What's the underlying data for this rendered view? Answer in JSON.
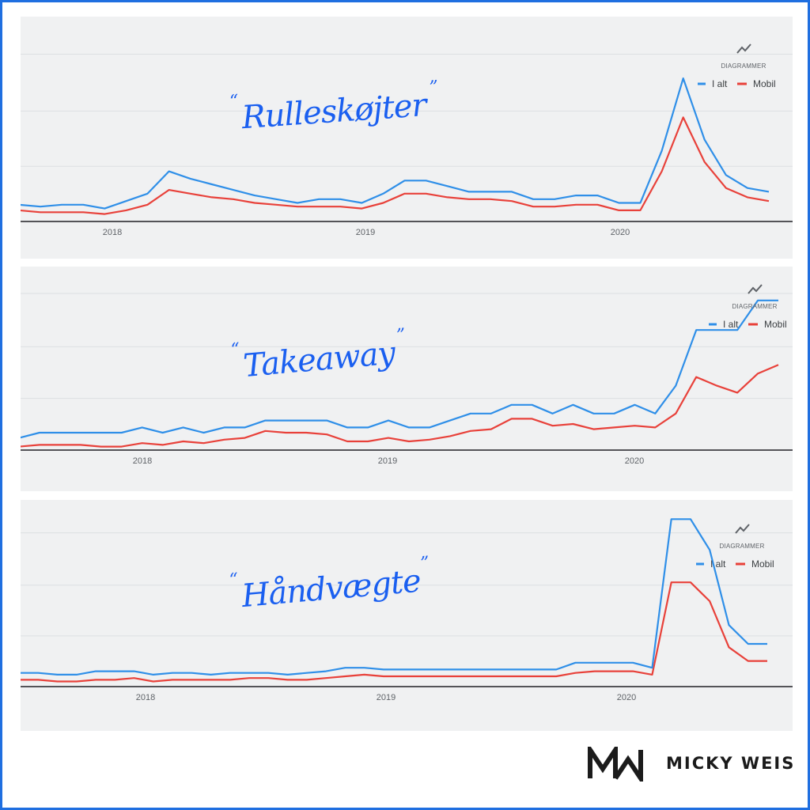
{
  "brand": {
    "name": "MICKY WEIS"
  },
  "colors": {
    "total": "#2f8fe8",
    "mobile": "#e8413a",
    "term": "#1a5ff0",
    "frame": "#1f6fe0"
  },
  "legend": {
    "icon": "trend-line-icon",
    "label": "DIAGRAMMER",
    "total": "I alt",
    "mobile": "Mobil"
  },
  "chart_data": [
    {
      "type": "line",
      "title": "Rulleskøjter",
      "x_ticks": [
        "2018",
        "2019",
        "2020"
      ],
      "x_start": "2017-08",
      "x_end": "2020-08",
      "ylim": [
        0,
        100
      ],
      "grid": true,
      "legend_position": "top-right",
      "series": [
        {
          "name": "I alt",
          "values": [
            9,
            8,
            9,
            9,
            7,
            11,
            15,
            27,
            23,
            20,
            17,
            14,
            12,
            10,
            12,
            12,
            10,
            15,
            22,
            22,
            19,
            16,
            16,
            16,
            12,
            12,
            14,
            14,
            10,
            10,
            38,
            77,
            44,
            25,
            18,
            16
          ]
        },
        {
          "name": "Mobil",
          "values": [
            6,
            5,
            5,
            5,
            4,
            6,
            9,
            17,
            15,
            13,
            12,
            10,
            9,
            8,
            8,
            8,
            7,
            10,
            15,
            15,
            13,
            12,
            12,
            11,
            8,
            8,
            9,
            9,
            6,
            6,
            27,
            56,
            32,
            18,
            13,
            11
          ]
        }
      ]
    },
    {
      "type": "line",
      "title": "Takeaway",
      "x_ticks": [
        "2018",
        "2019",
        "2020"
      ],
      "x_start": "2017-08",
      "x_end": "2020-08",
      "ylim": [
        0,
        100
      ],
      "grid": true,
      "legend_position": "top-right",
      "series": [
        {
          "name": "I alt",
          "values": [
            7,
            10,
            10,
            10,
            10,
            10,
            13,
            10,
            13,
            10,
            13,
            13,
            17,
            17,
            17,
            17,
            13,
            13,
            17,
            13,
            13,
            17,
            21,
            21,
            26,
            26,
            21,
            26,
            21,
            21,
            26,
            21,
            37,
            69,
            69,
            69,
            86,
            86
          ]
        },
        {
          "name": "Mobil",
          "values": [
            2,
            3,
            3,
            3,
            2,
            2,
            4,
            3,
            5,
            4,
            6,
            7,
            11,
            10,
            10,
            9,
            5,
            5,
            7,
            5,
            6,
            8,
            11,
            12,
            18,
            18,
            14,
            15,
            12,
            13,
            14,
            13,
            21,
            42,
            37,
            33,
            44,
            49
          ]
        }
      ]
    },
    {
      "type": "line",
      "title": "Håndvægte",
      "x_ticks": [
        "2018",
        "2019",
        "2020"
      ],
      "x_start": "2017-08",
      "x_end": "2020-08",
      "ylim": [
        0,
        100
      ],
      "grid": true,
      "legend_position": "top-right",
      "series": [
        {
          "name": "I alt",
          "values": [
            8,
            8,
            7,
            7,
            9,
            9,
            9,
            7,
            8,
            8,
            7,
            8,
            8,
            8,
            7,
            8,
            9,
            11,
            11,
            10,
            10,
            10,
            10,
            10,
            10,
            10,
            10,
            10,
            10,
            14,
            14,
            14,
            14,
            11,
            98,
            98,
            80,
            36,
            25,
            25
          ]
        },
        {
          "name": "Mobil",
          "values": [
            4,
            4,
            3,
            3,
            4,
            4,
            5,
            3,
            4,
            4,
            4,
            4,
            5,
            5,
            4,
            4,
            5,
            6,
            7,
            6,
            6,
            6,
            6,
            6,
            6,
            6,
            6,
            6,
            6,
            8,
            9,
            9,
            9,
            7,
            61,
            61,
            50,
            23,
            15,
            15
          ]
        }
      ]
    }
  ]
}
